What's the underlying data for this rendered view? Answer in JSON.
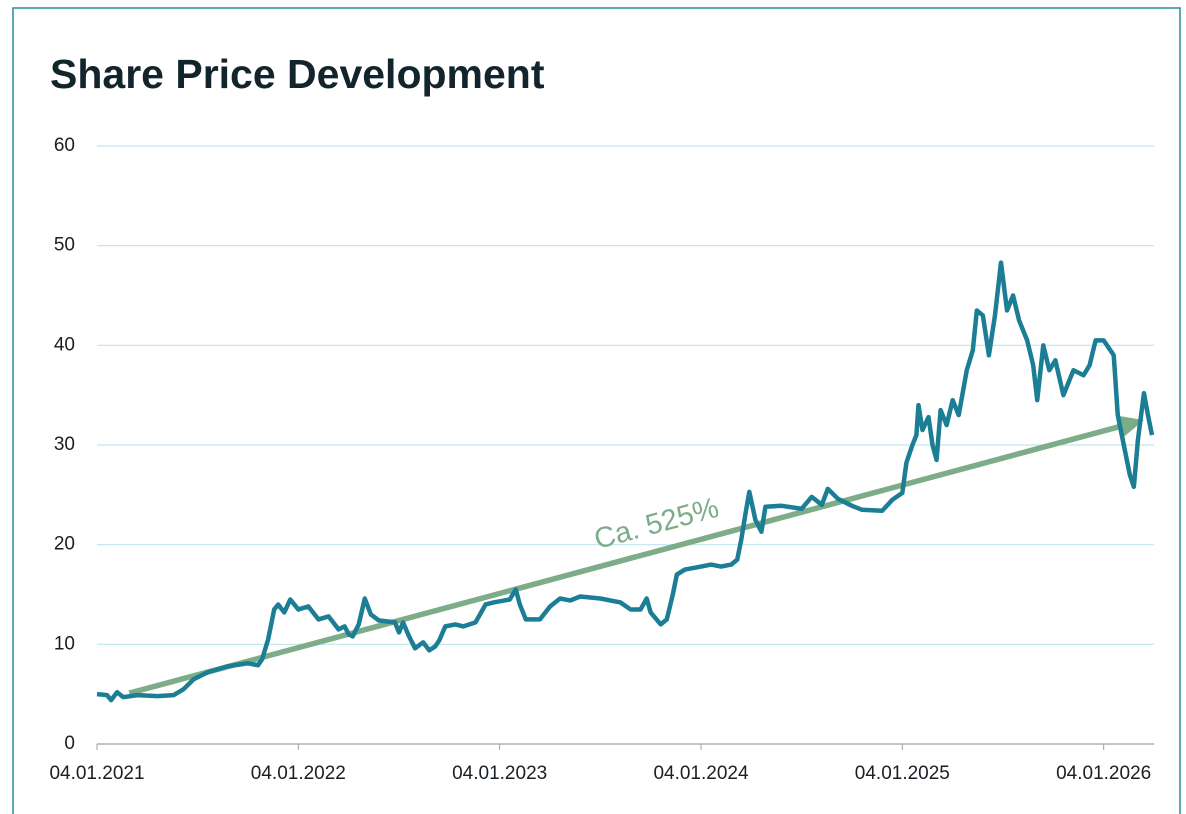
{
  "chart_data": {
    "type": "line",
    "title": "Share Price Development",
    "xlim": [
      2021.0,
      2026.25
    ],
    "xticks": [
      {
        "value": 2021,
        "label": "04.01.2021"
      },
      {
        "value": 2022,
        "label": "04.01.2022"
      },
      {
        "value": 2023,
        "label": "04.01.2023"
      },
      {
        "value": 2024,
        "label": "04.01.2024"
      },
      {
        "value": 2025,
        "label": "04.01.2025"
      },
      {
        "value": 2026,
        "label": "04.01.2026"
      }
    ],
    "ylim": [
      0,
      60
    ],
    "yticks": [
      0,
      10,
      20,
      30,
      40,
      50,
      60
    ],
    "grid": true,
    "x": [
      2021.0,
      2021.05,
      2021.07,
      2021.1,
      2021.13,
      2021.2,
      2021.3,
      2021.38,
      2021.43,
      2021.48,
      2021.55,
      2021.65,
      2021.75,
      2021.8,
      2021.82,
      2021.85,
      2021.88,
      2021.9,
      2021.93,
      2021.96,
      2022.0,
      2022.05,
      2022.1,
      2022.15,
      2022.2,
      2022.23,
      2022.25,
      2022.27,
      2022.3,
      2022.33,
      2022.36,
      2022.4,
      2022.48,
      2022.5,
      2022.52,
      2022.55,
      2022.58,
      2022.62,
      2022.65,
      2022.68,
      2022.7,
      2022.73,
      2022.78,
      2022.82,
      2022.88,
      2022.93,
      2022.97,
      2023.05,
      2023.08,
      2023.1,
      2023.13,
      2023.2,
      2023.25,
      2023.3,
      2023.35,
      2023.4,
      2023.5,
      2023.6,
      2023.65,
      2023.7,
      2023.73,
      2023.75,
      2023.8,
      2023.83,
      2023.86,
      2023.88,
      2023.92,
      2024.0,
      2024.05,
      2024.1,
      2024.15,
      2024.18,
      2024.2,
      2024.22,
      2024.24,
      2024.27,
      2024.3,
      2024.32,
      2024.4,
      2024.5,
      2024.55,
      2024.6,
      2024.63,
      2024.68,
      2024.75,
      2024.8,
      2024.9,
      2024.95,
      2025.0,
      2025.02,
      2025.05,
      2025.07,
      2025.08,
      2025.1,
      2025.13,
      2025.15,
      2025.17,
      2025.19,
      2025.22,
      2025.25,
      2025.28,
      2025.32,
      2025.35,
      2025.37,
      2025.4,
      2025.43,
      2025.46,
      2025.49,
      2025.52,
      2025.55,
      2025.58,
      2025.62,
      2025.65,
      2025.67,
      2025.7,
      2025.73,
      2025.76,
      2025.8,
      2025.85,
      2025.9,
      2025.93,
      2025.96,
      2026.0,
      2026.05,
      2026.07,
      2026.1,
      2026.13,
      2026.15,
      2026.17,
      2026.2,
      2026.22,
      2026.24
    ],
    "series": [
      {
        "color": "#1b7e94",
        "values": [
          5,
          4.9,
          4.4,
          5.2,
          4.7,
          4.9,
          4.8,
          4.9,
          5.5,
          6.5,
          7.2,
          7.8,
          8.1,
          7.9,
          8.5,
          10.5,
          13.5,
          14,
          13.2,
          14.5,
          13.5,
          13.8,
          12.5,
          12.8,
          11.5,
          11.8,
          11,
          10.8,
          12,
          14.6,
          13,
          12.4,
          12.2,
          11.2,
          12.2,
          10.8,
          9.6,
          10.2,
          9.4,
          9.8,
          10.4,
          11.8,
          12,
          11.8,
          12.2,
          14,
          14.2,
          14.5,
          15.5,
          14,
          12.5,
          12.5,
          13.8,
          14.6,
          14.4,
          14.8,
          14.6,
          14.2,
          13.5,
          13.5,
          14.6,
          13.2,
          12,
          12.5,
          15,
          17,
          17.5,
          17.8,
          18,
          17.8,
          18,
          18.5,
          20.5,
          23,
          25.3,
          22.5,
          21.3,
          23.8,
          23.9,
          23.6,
          24.8,
          24,
          25.6,
          24.6,
          23.9,
          23.5,
          23.4,
          24.5,
          25.2,
          28.2,
          30,
          31,
          34,
          31.5,
          32.8,
          30,
          28.5,
          33.5,
          32,
          34.5,
          33,
          37.5,
          39.5,
          43.5,
          43,
          39,
          43,
          48.3,
          43.5,
          45,
          42.5,
          40.5,
          38,
          34.5,
          40,
          37.5,
          38.5,
          35,
          37.5,
          37,
          38,
          40.5,
          40.5,
          39,
          33,
          30,
          27,
          25.8,
          30.5,
          35.2,
          33,
          31
        ]
      }
    ],
    "annotations": [
      {
        "text": "Ca. 525%",
        "color": "#7dac88",
        "x": [
          2021.16,
          2026.2
        ],
        "y": [
          5.1,
          32.5
        ]
      }
    ]
  }
}
